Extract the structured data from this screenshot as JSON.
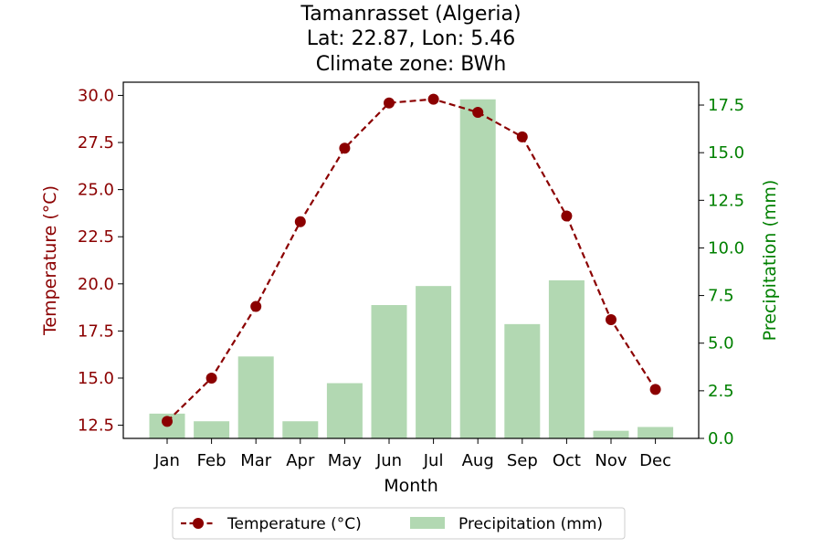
{
  "chart_data": {
    "type": "bar+line",
    "title_lines": [
      "Tamanrasset (Algeria)",
      "Lat: 22.87, Lon: 5.46",
      "Climate zone: BWh"
    ],
    "xlabel": "Month",
    "categories": [
      "Jan",
      "Feb",
      "Mar",
      "Apr",
      "May",
      "Jun",
      "Jul",
      "Aug",
      "Sep",
      "Oct",
      "Nov",
      "Dec"
    ],
    "temperature": {
      "name": "Temperature (°C)",
      "axis_label": "Temperature (°C)",
      "values": [
        12.7,
        15.0,
        18.8,
        23.3,
        27.2,
        29.6,
        29.8,
        29.1,
        27.8,
        23.6,
        18.1,
        14.4
      ],
      "ylim": [
        11.8,
        30.7
      ],
      "ticks": [
        "12.5",
        "15.0",
        "17.5",
        "20.0",
        "22.5",
        "25.0",
        "27.5",
        "30.0"
      ],
      "color": "#8b0000"
    },
    "precipitation": {
      "name": "Precipitation (mm)",
      "axis_label": "Precipitation (mm)",
      "values": [
        1.3,
        0.9,
        4.3,
        0.9,
        2.9,
        7.0,
        8.0,
        17.8,
        6.0,
        8.3,
        0.4,
        0.6
      ],
      "ylim": [
        0,
        18.7
      ],
      "ticks": [
        "0.0",
        "2.5",
        "5.0",
        "7.5",
        "10.0",
        "12.5",
        "15.0",
        "17.5"
      ],
      "color": "#b2d8b2",
      "axis_color": "#008000"
    },
    "legend": {
      "placement": "bottom-center",
      "entries": [
        "Temperature (°C)",
        "Precipitation (mm)"
      ]
    },
    "grid": false
  }
}
